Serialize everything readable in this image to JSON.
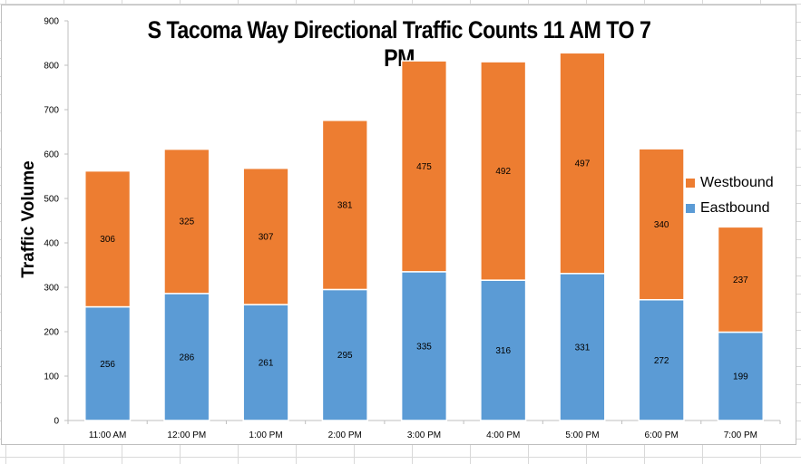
{
  "chart_data": {
    "type": "bar",
    "stacked": true,
    "title": "S Tacoma Way Directional Traffic Counts 11 AM TO 7 PM",
    "xlabel": "",
    "ylabel": "Traffic Volume",
    "ylim": [
      0,
      900
    ],
    "yticks": [
      0,
      100,
      200,
      300,
      400,
      500,
      600,
      700,
      800,
      900
    ],
    "grid": false,
    "legend_position": "right",
    "categories": [
      "11:00 AM",
      "12:00 PM",
      "1:00 PM",
      "2:00 PM",
      "3:00 PM",
      "4:00 PM",
      "5:00 PM",
      "6:00 PM",
      "7:00 PM"
    ],
    "series": [
      {
        "name": "Eastbound",
        "color": "#5b9bd5",
        "values": [
          256,
          286,
          261,
          295,
          335,
          316,
          331,
          272,
          199
        ]
      },
      {
        "name": "Westbound",
        "color": "#ed7d31",
        "values": [
          306,
          325,
          307,
          381,
          475,
          492,
          497,
          340,
          237
        ]
      }
    ],
    "legend_order": [
      "Westbound",
      "Eastbound"
    ]
  }
}
